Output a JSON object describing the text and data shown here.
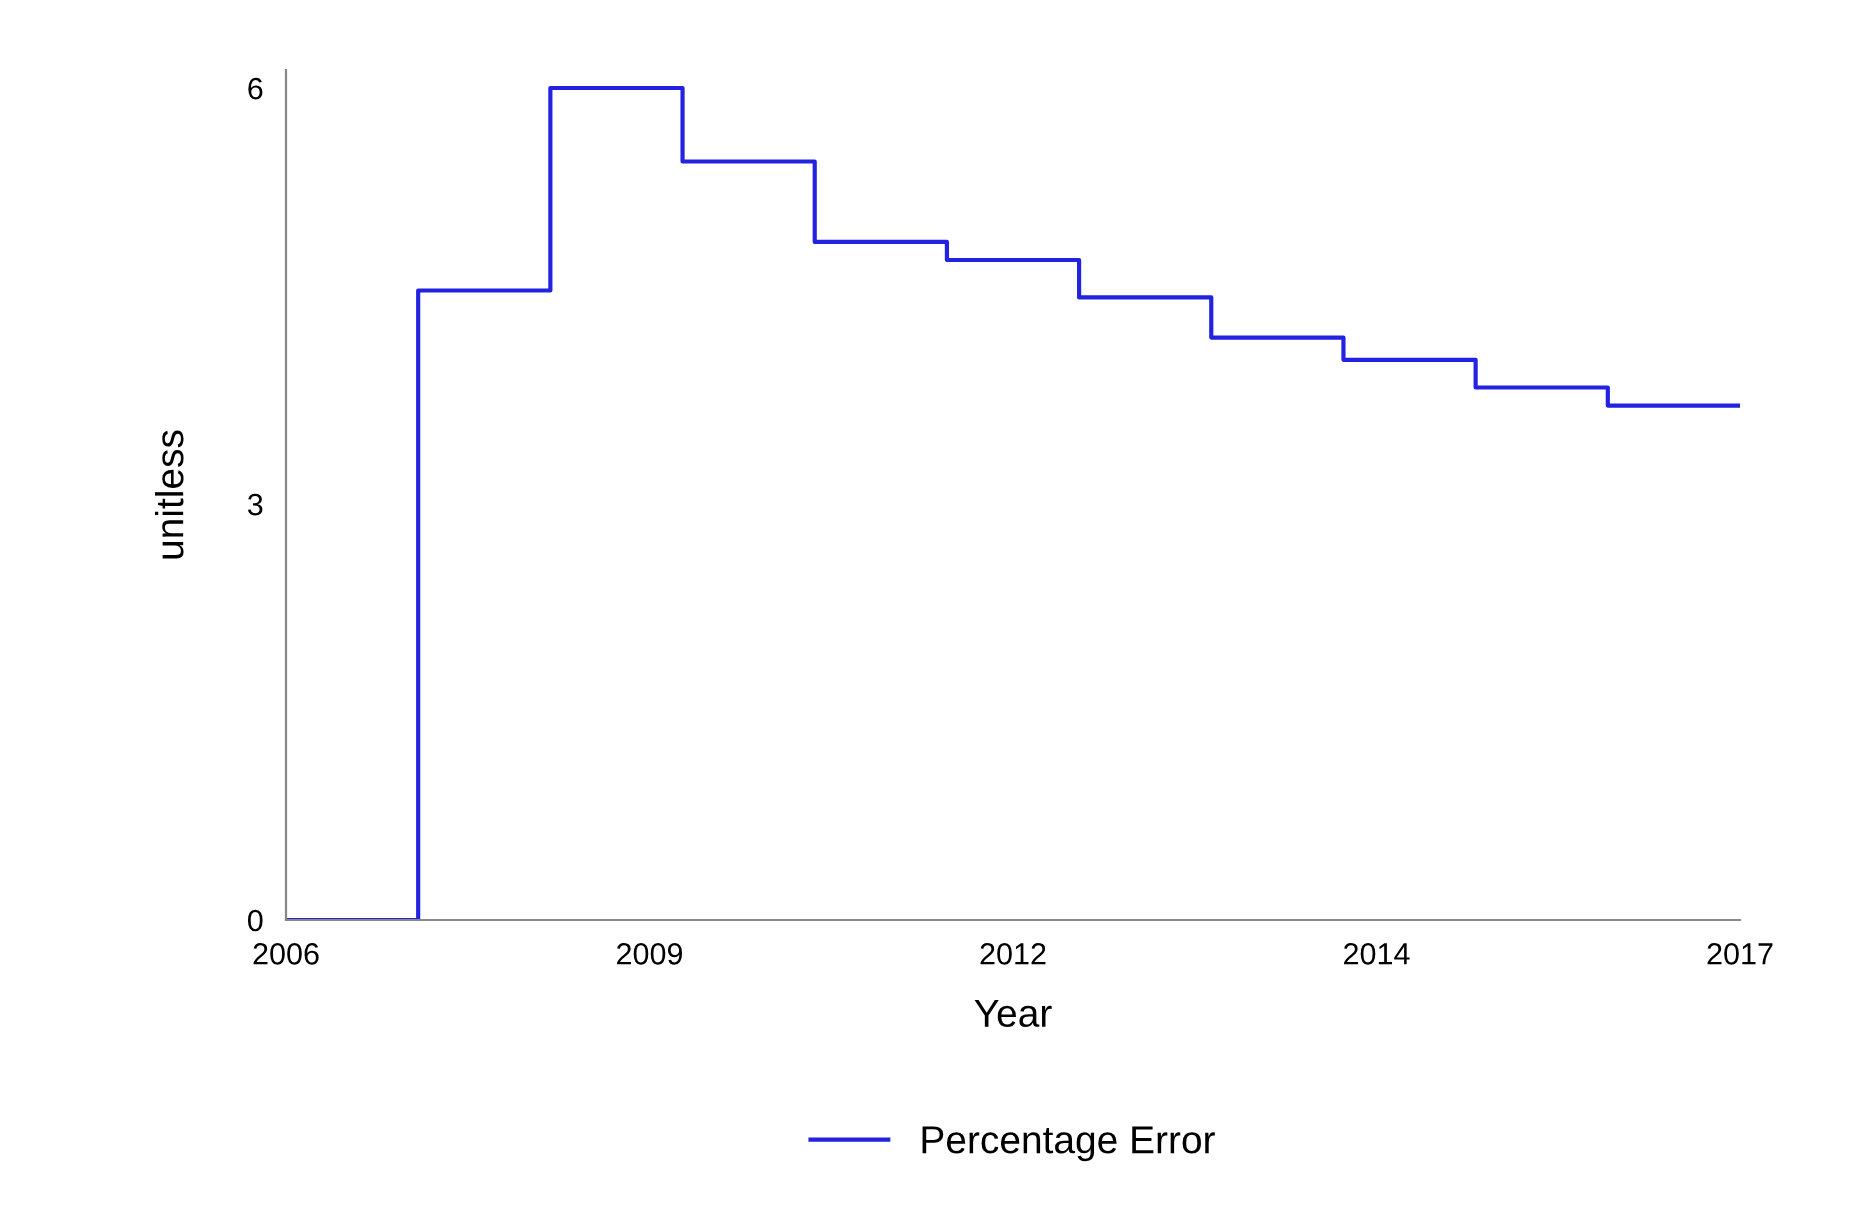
{
  "chart_data": {
    "type": "step",
    "xlabel": "Year",
    "ylabel": "unitless",
    "x": [
      2006,
      2007,
      2008,
      2009,
      2010,
      2011,
      2012,
      2013,
      2014,
      2015,
      2016,
      2017
    ],
    "series": [
      {
        "name": "Percentage Error",
        "color": "#2222e0",
        "values": [
          0,
          4.54,
          6.0,
          5.47,
          4.89,
          4.76,
          4.49,
          4.2,
          4.04,
          3.84,
          3.71,
          3.71
        ]
      }
    ],
    "xlim": [
      2006,
      2017
    ],
    "ylim": [
      0,
      6.13
    ],
    "xticks": [
      {
        "value": 2006,
        "label": "2006"
      },
      {
        "value": 2008.75,
        "label": "2009"
      },
      {
        "value": 2011.5,
        "label": "2012"
      },
      {
        "value": 2014.25,
        "label": "2014"
      },
      {
        "value": 2017,
        "label": "2017"
      }
    ],
    "yticks": [
      0,
      3,
      6
    ],
    "grid": false,
    "legend": "bottom",
    "marker": "none",
    "line_style": "solid"
  }
}
